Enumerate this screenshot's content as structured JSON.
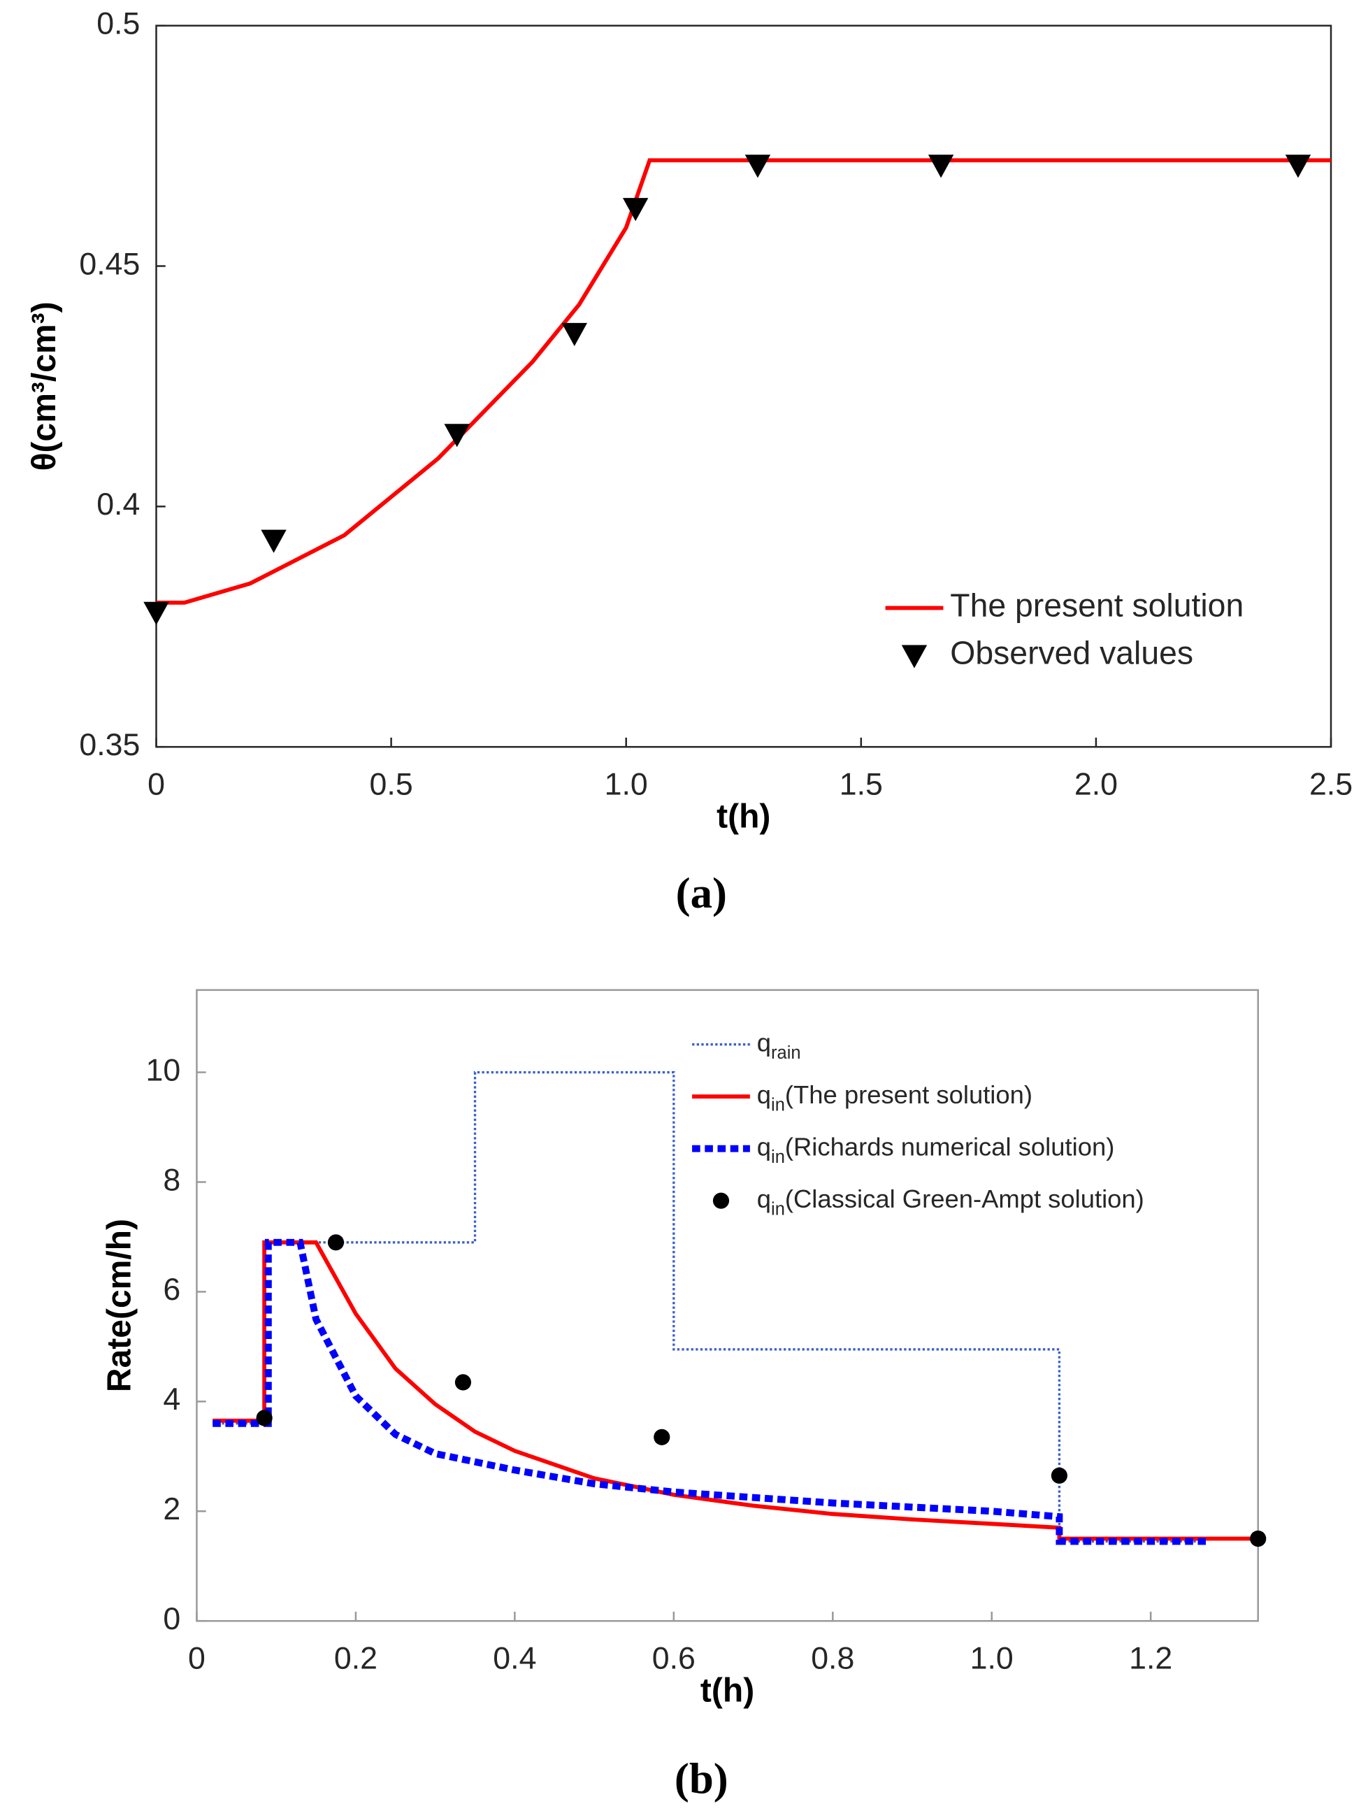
{
  "chart_data": [
    {
      "type": "line",
      "caption": "(a)",
      "xlabel": "t(h)",
      "ylabel": "θ(cm³/cm³)",
      "xlim": [
        0,
        2.5
      ],
      "ylim": [
        0.35,
        0.5
      ],
      "xticks": [
        0,
        0.5,
        {
          "value": 1,
          "label": "1.0"
        },
        1.5,
        {
          "value": 2,
          "label": "2.0"
        },
        2.5
      ],
      "yticks": [
        0.35,
        0.4,
        0.45,
        0.5
      ],
      "legend": "lower right",
      "series": [
        {
          "name": "The present solution",
          "type": "line",
          "style": "solid",
          "color": "#ff0000",
          "x": [
            0,
            0.06,
            0.2,
            0.4,
            0.6,
            0.8,
            0.9,
            1.0,
            1.05,
            2.5
          ],
          "values": [
            0.38,
            0.38,
            0.384,
            0.394,
            0.41,
            0.43,
            0.442,
            0.458,
            0.472,
            0.472
          ]
        },
        {
          "name": "Observed values",
          "type": "scatter",
          "marker": "triangle-down",
          "color": "#000000",
          "x": [
            0,
            0.25,
            0.64,
            0.89,
            1.02,
            1.28,
            1.67,
            2.43
          ],
          "values": [
            0.378,
            0.393,
            0.415,
            0.436,
            0.462,
            0.471,
            0.471,
            0.471
          ]
        }
      ]
    },
    {
      "type": "line",
      "caption": "(b)",
      "xlabel": "t(h)",
      "ylabel": "Rate(cm/h)",
      "xlim": [
        0,
        1.335
      ],
      "ylim": [
        0,
        11.5
      ],
      "xticks": [
        0,
        0.2,
        0.4,
        0.6,
        0.8,
        {
          "value": 1,
          "label": "1.0"
        },
        1.2
      ],
      "yticks": [
        0,
        2,
        4,
        6,
        8,
        10
      ],
      "legend": "upper right",
      "series": [
        {
          "name": "q",
          "subscript": "rain",
          "type": "line",
          "style": "dotted",
          "color": "#3a5fcd",
          "x": [
            0.02,
            0.085,
            0.085,
            0.35,
            0.35,
            0.6,
            0.6,
            1.085,
            1.085,
            1.27
          ],
          "values": [
            3.6,
            3.6,
            6.9,
            6.9,
            10,
            10,
            4.95,
            4.95,
            1.45,
            1.45
          ]
        },
        {
          "name": "q",
          "subscript": "in",
          "suffix": "(The present solution)",
          "type": "line",
          "style": "solid",
          "color": "#ff0000",
          "x": [
            0.02,
            0.085,
            0.085,
            0.15,
            0.2,
            0.25,
            0.3,
            0.35,
            0.4,
            0.5,
            0.6,
            0.7,
            0.8,
            0.9,
            1.0,
            1.085,
            1.085,
            1.33
          ],
          "values": [
            3.65,
            3.65,
            6.9,
            6.9,
            5.6,
            4.6,
            3.95,
            3.45,
            3.1,
            2.6,
            2.3,
            2.1,
            1.95,
            1.85,
            1.77,
            1.7,
            1.5,
            1.5
          ]
        },
        {
          "name": "q",
          "subscript": "in",
          "suffix": "(Richards numerical solution)",
          "type": "line",
          "style": "dashed",
          "color": "#0000ff",
          "x": [
            0.02,
            0.09,
            0.09,
            0.13,
            0.15,
            0.2,
            0.25,
            0.3,
            0.4,
            0.5,
            0.6,
            0.8,
            1.0,
            1.085,
            1.085,
            1.27
          ],
          "values": [
            3.6,
            3.6,
            6.9,
            6.9,
            5.5,
            4.1,
            3.4,
            3.05,
            2.75,
            2.5,
            2.35,
            2.15,
            2.0,
            1.9,
            1.45,
            1.45
          ]
        },
        {
          "name": "q",
          "subscript": "in",
          "suffix": "(Classical Green-Ampt solution)",
          "type": "scatter",
          "marker": "circle",
          "color": "#000000",
          "x": [
            0.085,
            0.175,
            0.335,
            0.585,
            1.085,
            1.335
          ],
          "values": [
            3.7,
            6.9,
            4.35,
            3.35,
            2.65,
            1.5
          ]
        }
      ]
    }
  ]
}
